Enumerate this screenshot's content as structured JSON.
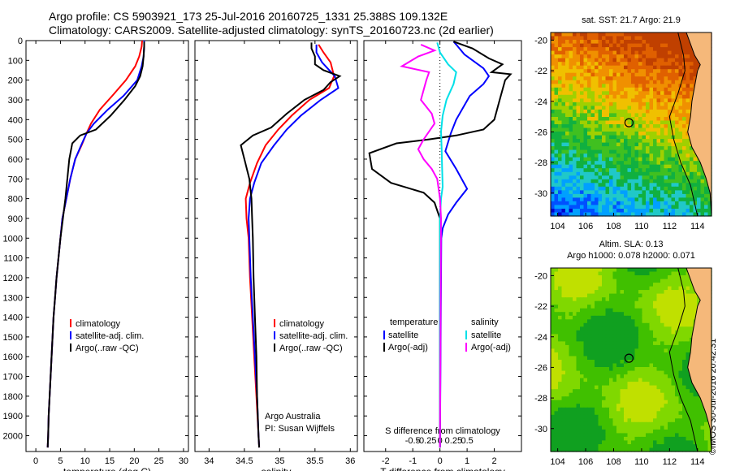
{
  "header": {
    "line1": "Argo profile: CS 5903921_173 25-Jul-2016 20160725_1331 25.388S 109.132E",
    "line2": "Climatology: CARS2009. Satellite-adjusted climatology: synTS_20160723.nc (2d earlier)"
  },
  "stamp": "©IMOS 30-Jul-2016 20:42:31",
  "colors": {
    "climatology": "#ff0000",
    "satellite": "#0000ff",
    "argo": "#000000",
    "sal_satellite": "#00e0e8",
    "sal_argo": "#ff00ff"
  },
  "chart_data": [
    {
      "type": "line",
      "id": "temperature",
      "xlabel": "temperature (deg C)",
      "ylabel": "",
      "xlim": [
        -2,
        31
      ],
      "ylim": [
        2080,
        0
      ],
      "xticks": [
        0,
        5,
        10,
        15,
        20,
        25,
        30
      ],
      "yticks": [
        0,
        100,
        200,
        300,
        400,
        500,
        600,
        700,
        800,
        900,
        1000,
        1100,
        1200,
        1300,
        1400,
        1500,
        1600,
        1700,
        1800,
        1900,
        2000
      ],
      "legend": {
        "position": "bottom-center",
        "entries": [
          "climatology",
          "satellite-adj. clim.",
          "Argo(..raw -QC)"
        ]
      },
      "series": [
        {
          "name": "climatology",
          "color": "#ff0000",
          "points": [
            [
              21.6,
              0
            ],
            [
              21.5,
              30
            ],
            [
              21.0,
              80
            ],
            [
              20.2,
              130
            ],
            [
              18.3,
              200
            ],
            [
              15.5,
              280
            ],
            [
              13.0,
              350
            ],
            [
              11.2,
              420
            ],
            [
              10.3,
              470
            ],
            [
              9.3,
              530
            ],
            [
              8.0,
              600
            ],
            [
              7.0,
              700
            ],
            [
              6.2,
              800
            ],
            [
              5.4,
              900
            ],
            [
              5.0,
              1000
            ],
            [
              4.6,
              1100
            ],
            [
              4.2,
              1200
            ],
            [
              3.9,
              1300
            ],
            [
              3.6,
              1400
            ],
            [
              3.4,
              1500
            ],
            [
              3.2,
              1600
            ],
            [
              3.0,
              1700
            ],
            [
              2.8,
              1800
            ],
            [
              2.6,
              1900
            ],
            [
              2.5,
              2000
            ],
            [
              2.4,
              2060
            ]
          ]
        },
        {
          "name": "satellite-adj. clim.",
          "color": "#0000ff",
          "points": [
            [
              22.0,
              0
            ],
            [
              22.0,
              30
            ],
            [
              21.9,
              80
            ],
            [
              21.5,
              130
            ],
            [
              20.6,
              200
            ],
            [
              17.8,
              280
            ],
            [
              14.6,
              350
            ],
            [
              11.8,
              420
            ],
            [
              10.3,
              470
            ],
            [
              9.2,
              530
            ],
            [
              8.0,
              600
            ],
            [
              7.0,
              700
            ],
            [
              6.2,
              800
            ],
            [
              5.4,
              900
            ],
            [
              5.0,
              1000
            ],
            [
              4.6,
              1100
            ],
            [
              4.2,
              1200
            ],
            [
              3.9,
              1300
            ],
            [
              3.6,
              1400
            ],
            [
              3.4,
              1500
            ],
            [
              3.2,
              1600
            ],
            [
              3.0,
              1700
            ],
            [
              2.8,
              1800
            ],
            [
              2.6,
              1900
            ],
            [
              2.5,
              2000
            ],
            [
              2.4,
              2060
            ]
          ]
        },
        {
          "name": "Argo(..raw -QC)",
          "color": "#000000",
          "points": [
            [
              22.0,
              5
            ],
            [
              22.0,
              30
            ],
            [
              21.9,
              80
            ],
            [
              21.7,
              130
            ],
            [
              21.2,
              180
            ],
            [
              20.2,
              230
            ],
            [
              18.0,
              300
            ],
            [
              15.2,
              380
            ],
            [
              12.2,
              450
            ],
            [
              9.0,
              480
            ],
            [
              7.4,
              520
            ],
            [
              6.8,
              600
            ],
            [
              6.4,
              700
            ],
            [
              6.0,
              800
            ],
            [
              5.5,
              900
            ],
            [
              5.0,
              1000
            ],
            [
              4.6,
              1100
            ],
            [
              4.2,
              1200
            ],
            [
              3.9,
              1300
            ],
            [
              3.6,
              1400
            ],
            [
              3.4,
              1500
            ],
            [
              3.2,
              1600
            ],
            [
              3.0,
              1700
            ],
            [
              2.8,
              1800
            ],
            [
              2.6,
              1900
            ],
            [
              2.5,
              2000
            ],
            [
              2.4,
              2060
            ]
          ]
        }
      ]
    },
    {
      "type": "line",
      "id": "salinity",
      "xlabel": "salinity",
      "ylabel": "",
      "xlim": [
        33.8,
        36.1
      ],
      "ylim": [
        2080,
        0
      ],
      "xticks": [
        34,
        34.5,
        35,
        35.5,
        36
      ],
      "xticklabels": [
        "34",
        "34.5",
        "35",
        "35.5",
        "36"
      ],
      "legend": {
        "position": "bottom-center",
        "entries": [
          "climatology",
          "satellite-adj. clim.",
          "Argo(..raw -QC)"
        ]
      },
      "annotation": [
        "Argo Australia",
        "PI: Susan Wijffels"
      ],
      "series": [
        {
          "name": "climatology",
          "color": "#ff0000",
          "points": [
            [
              35.55,
              20
            ],
            [
              35.62,
              60
            ],
            [
              35.72,
              110
            ],
            [
              35.77,
              180
            ],
            [
              35.7,
              240
            ],
            [
              35.42,
              300
            ],
            [
              35.17,
              380
            ],
            [
              34.98,
              450
            ],
            [
              34.8,
              530
            ],
            [
              34.68,
              620
            ],
            [
              34.58,
              720
            ],
            [
              34.52,
              800
            ],
            [
              34.53,
              900
            ],
            [
              34.56,
              1000
            ],
            [
              34.58,
              1200
            ],
            [
              34.61,
              1400
            ],
            [
              34.64,
              1600
            ],
            [
              34.67,
              1800
            ],
            [
              34.7,
              2000
            ],
            [
              34.71,
              2060
            ]
          ]
        },
        {
          "name": "satellite-adj. clim.",
          "color": "#0000ff",
          "points": [
            [
              35.52,
              20
            ],
            [
              35.52,
              60
            ],
            [
              35.6,
              110
            ],
            [
              35.78,
              180
            ],
            [
              35.83,
              240
            ],
            [
              35.58,
              300
            ],
            [
              35.3,
              380
            ],
            [
              35.1,
              450
            ],
            [
              34.92,
              530
            ],
            [
              34.74,
              620
            ],
            [
              34.64,
              720
            ],
            [
              34.58,
              800
            ],
            [
              34.56,
              900
            ],
            [
              34.57,
              1000
            ],
            [
              34.59,
              1200
            ],
            [
              34.62,
              1400
            ],
            [
              34.65,
              1600
            ],
            [
              34.68,
              1800
            ],
            [
              34.7,
              2000
            ],
            [
              34.71,
              2060
            ]
          ]
        },
        {
          "name": "Argo(..raw -QC)",
          "color": "#000000",
          "points": [
            [
              35.45,
              10
            ],
            [
              35.45,
              40
            ],
            [
              35.5,
              80
            ],
            [
              35.5,
              120
            ],
            [
              35.62,
              150
            ],
            [
              35.85,
              180
            ],
            [
              35.72,
              210
            ],
            [
              35.62,
              250
            ],
            [
              35.35,
              300
            ],
            [
              35.1,
              370
            ],
            [
              34.88,
              440
            ],
            [
              34.62,
              480
            ],
            [
              34.45,
              530
            ],
            [
              34.5,
              600
            ],
            [
              34.57,
              700
            ],
            [
              34.6,
              800
            ],
            [
              34.61,
              900
            ],
            [
              34.62,
              1000
            ],
            [
              34.63,
              1200
            ],
            [
              34.65,
              1400
            ],
            [
              34.67,
              1600
            ],
            [
              34.68,
              1800
            ],
            [
              34.7,
              2000
            ],
            [
              34.71,
              2060
            ]
          ]
        }
      ]
    },
    {
      "type": "line",
      "id": "difference",
      "xlabel": "T difference from climatology",
      "x2label": "S difference from climatology",
      "xlim": [
        -2.8,
        3.0
      ],
      "ylim": [
        2080,
        0
      ],
      "xticks": [
        -2,
        -1,
        0,
        1,
        2
      ],
      "x2ticks": [
        -0.5,
        -0.25,
        0,
        0.25,
        0.5
      ],
      "zero_line": "dotted",
      "legend_temperature": {
        "title": "temperature",
        "entries": [
          "satellite",
          "Argo(-adj)"
        ]
      },
      "legend_salinity": {
        "title": "salinity",
        "entries": [
          "satellite",
          "Argo(-adj)"
        ]
      },
      "series": [
        {
          "name": "T satellite",
          "color": "#0000ff",
          "points": [
            [
              0.5,
              5
            ],
            [
              0.6,
              20
            ],
            [
              0.9,
              70
            ],
            [
              1.2,
              100
            ],
            [
              1.6,
              140
            ],
            [
              1.8,
              180
            ],
            [
              1.6,
              220
            ],
            [
              1.1,
              280
            ],
            [
              0.6,
              400
            ],
            [
              0.4,
              470
            ],
            [
              0.2,
              560
            ],
            [
              0.6,
              650
            ],
            [
              1.0,
              750
            ],
            [
              0.6,
              820
            ],
            [
              0.3,
              880
            ],
            [
              0.1,
              950
            ],
            [
              0.05,
              1000
            ],
            [
              0.0,
              2060
            ]
          ]
        },
        {
          "name": "T Argo(-adj)",
          "color": "#000000",
          "points": [
            [
              0.5,
              5
            ],
            [
              1.2,
              40
            ],
            [
              1.8,
              90
            ],
            [
              2.3,
              120
            ],
            [
              1.9,
              160
            ],
            [
              2.6,
              170
            ],
            [
              2.4,
              200
            ],
            [
              2.2,
              300
            ],
            [
              2.0,
              400
            ],
            [
              1.6,
              450
            ],
            [
              0.6,
              480
            ],
            [
              -0.4,
              500
            ],
            [
              -1.6,
              520
            ],
            [
              -2.6,
              570
            ],
            [
              -2.5,
              650
            ],
            [
              -1.8,
              720
            ],
            [
              -0.6,
              770
            ],
            [
              -0.2,
              820
            ],
            [
              -0.1,
              860
            ],
            [
              0.0,
              900
            ],
            [
              0.0,
              1000
            ],
            [
              0.0,
              2060
            ]
          ]
        },
        {
          "name": "S satellite",
          "color": "#00e0e8",
          "points": [
            [
              -0.05,
              10
            ],
            [
              0.0,
              60
            ],
            [
              0.15,
              120
            ],
            [
              0.3,
              160
            ],
            [
              0.25,
              220
            ],
            [
              0.12,
              300
            ],
            [
              0.05,
              380
            ],
            [
              0.02,
              460
            ],
            [
              0.03,
              540
            ],
            [
              0.04,
              640
            ],
            [
              0.05,
              740
            ],
            [
              0.02,
              800
            ],
            [
              0.0,
              900
            ],
            [
              0.0,
              2060
            ]
          ]
        },
        {
          "name": "S Argo(-adj)",
          "color": "#ff00ff",
          "points": [
            [
              -0.35,
              20
            ],
            [
              -0.1,
              50
            ],
            [
              -0.4,
              80
            ],
            [
              -0.7,
              130
            ],
            [
              -0.2,
              160
            ],
            [
              -0.25,
              200
            ],
            [
              -0.35,
              300
            ],
            [
              -0.15,
              370
            ],
            [
              -0.1,
              420
            ],
            [
              -0.3,
              500
            ],
            [
              -0.4,
              550
            ],
            [
              -0.3,
              600
            ],
            [
              -0.15,
              650
            ],
            [
              -0.05,
              700
            ],
            [
              0.0,
              800
            ],
            [
              0.02,
              900
            ],
            [
              0.0,
              2060
            ]
          ]
        }
      ]
    },
    {
      "type": "heatmap",
      "id": "sst_map",
      "title": "sat. SST: 21.7  Argo: 21.9",
      "xlim": [
        103.5,
        115
      ],
      "ylim": [
        -31.5,
        -19.5
      ],
      "xticks": [
        104,
        106,
        108,
        110,
        112,
        114
      ],
      "yticks": [
        -20,
        -22,
        -24,
        -26,
        -28,
        -30
      ],
      "argo_position": [
        109.1,
        -25.4
      ],
      "colormap": [
        "#00008b",
        "#0000cd",
        "#0050ff",
        "#00a0ff",
        "#20c8c8",
        "#10b040",
        "#40c020",
        "#a0d000",
        "#f0c000",
        "#f09000",
        "#e06000",
        "#c04000"
      ]
    },
    {
      "type": "heatmap",
      "id": "sla_map",
      "title": "Altim. SLA: 0.13",
      "title2": "Argo h1000: 0.078  h2000: 0.071",
      "xlim": [
        103.5,
        115
      ],
      "ylim": [
        -31.5,
        -19.5
      ],
      "xticks": [
        104,
        106,
        108,
        110,
        112,
        114
      ],
      "yticks": [
        -20,
        -22,
        -24,
        -26,
        -28,
        -30
      ],
      "argo_position": [
        109.1,
        -25.4
      ],
      "colormap": [
        "#10a020",
        "#40c000",
        "#80d800",
        "#c0e000",
        "#f0d000",
        "#f0a000",
        "#f07000"
      ]
    }
  ]
}
